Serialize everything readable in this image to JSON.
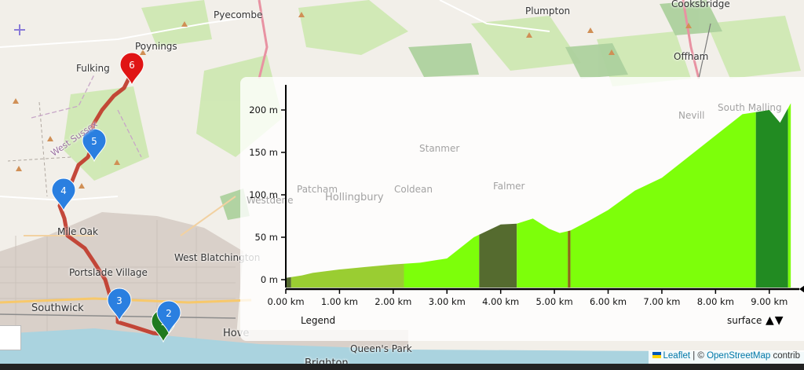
{
  "map": {
    "places": [
      {
        "id": "pyecombe",
        "name": "Pyecombe"
      },
      {
        "id": "plumpton",
        "name": "Plumpton"
      },
      {
        "id": "cooksbridge",
        "name": "Cooksbridge"
      },
      {
        "id": "poynings",
        "name": "Poynings"
      },
      {
        "id": "fulking",
        "name": "Fulking"
      },
      {
        "id": "offham",
        "name": "Offham"
      },
      {
        "id": "west-sussex",
        "name": "West Sussex"
      },
      {
        "id": "mile-oak",
        "name": "Mile Oak"
      },
      {
        "id": "west-blatchington",
        "name": "West Blatchington"
      },
      {
        "id": "portslade-village",
        "name": "Portslade Village"
      },
      {
        "id": "southwick",
        "name": "Southwick"
      },
      {
        "id": "hove",
        "name": "Hove"
      },
      {
        "id": "queens-park",
        "name": "Queen's Park"
      },
      {
        "id": "brighton",
        "name": "Brighton"
      },
      {
        "id": "stanmer",
        "name": "Stanmer"
      },
      {
        "id": "patcham",
        "name": "Patcham"
      },
      {
        "id": "hollingbury",
        "name": "Hollingbury"
      },
      {
        "id": "coldean",
        "name": "Coldean"
      },
      {
        "id": "falmer",
        "name": "Falmer"
      },
      {
        "id": "westdene",
        "name": "Westdene"
      },
      {
        "id": "nevill",
        "name": "Nevill"
      },
      {
        "id": "south-malling",
        "name": "South Malling"
      }
    ],
    "markers": [
      {
        "label": "1",
        "color": "#1f7a1f"
      },
      {
        "label": "2",
        "color": "#2a7fe0"
      },
      {
        "label": "3",
        "color": "#2a7fe0"
      },
      {
        "label": "4",
        "color": "#2a7fe0"
      },
      {
        "label": "5",
        "color": "#2a7fe0"
      },
      {
        "label": "6",
        "color": "#e01414"
      }
    ],
    "route_color": "#cc3333"
  },
  "profile": {
    "y_ticks": [
      "200 m",
      "150 m",
      "100 m",
      "50 m",
      "0 m"
    ],
    "x_ticks": [
      "0.00 km",
      "1.00 km",
      "2.00 km",
      "3.00 km",
      "4.00 km",
      "5.00 km",
      "6.00 km",
      "7.00 km",
      "8.00 km",
      "9.00 km"
    ],
    "legend_label": "Legend",
    "surface_label": "surface",
    "sort_arrows": "▲▼",
    "colors": {
      "light_green": "#7dff0a",
      "olive": "#9acd32",
      "dark_olive": "#556b2f",
      "forest": "#228b22",
      "brown": "#8b6914"
    }
  },
  "chart_data": {
    "type": "area",
    "xlabel": "",
    "ylabel": "",
    "x_unit": "km",
    "y_unit": "m",
    "ylim": [
      0,
      200
    ],
    "xlim": [
      0,
      9.5
    ],
    "x": [
      0.0,
      0.3,
      0.5,
      1.0,
      1.5,
      2.0,
      2.5,
      3.0,
      3.5,
      4.0,
      4.3,
      4.6,
      4.9,
      5.1,
      5.3,
      5.6,
      6.0,
      6.5,
      7.0,
      7.5,
      8.0,
      8.5,
      9.0,
      9.2,
      9.4
    ],
    "y": [
      2,
      5,
      8,
      12,
      15,
      18,
      20,
      25,
      50,
      65,
      66,
      72,
      60,
      55,
      58,
      68,
      82,
      105,
      120,
      145,
      170,
      195,
      200,
      185,
      208
    ],
    "surface_segments": [
      {
        "from": 0.0,
        "to": 0.1,
        "surface": "dark"
      },
      {
        "from": 0.1,
        "to": 2.2,
        "surface": "olive"
      },
      {
        "from": 2.2,
        "to": 3.6,
        "surface": "grass"
      },
      {
        "from": 3.6,
        "to": 4.3,
        "surface": "dark_olive"
      },
      {
        "from": 4.3,
        "to": 5.25,
        "surface": "grass"
      },
      {
        "from": 5.25,
        "to": 5.3,
        "surface": "brown"
      },
      {
        "from": 5.3,
        "to": 8.75,
        "surface": "grass"
      },
      {
        "from": 8.75,
        "to": 9.35,
        "surface": "forest"
      },
      {
        "from": 9.35,
        "to": 9.4,
        "surface": "grass"
      }
    ]
  },
  "attribution": {
    "leaflet": "Leaflet",
    "sep": " | © ",
    "osm": "OpenStreetMap",
    "tail": " contrib"
  }
}
